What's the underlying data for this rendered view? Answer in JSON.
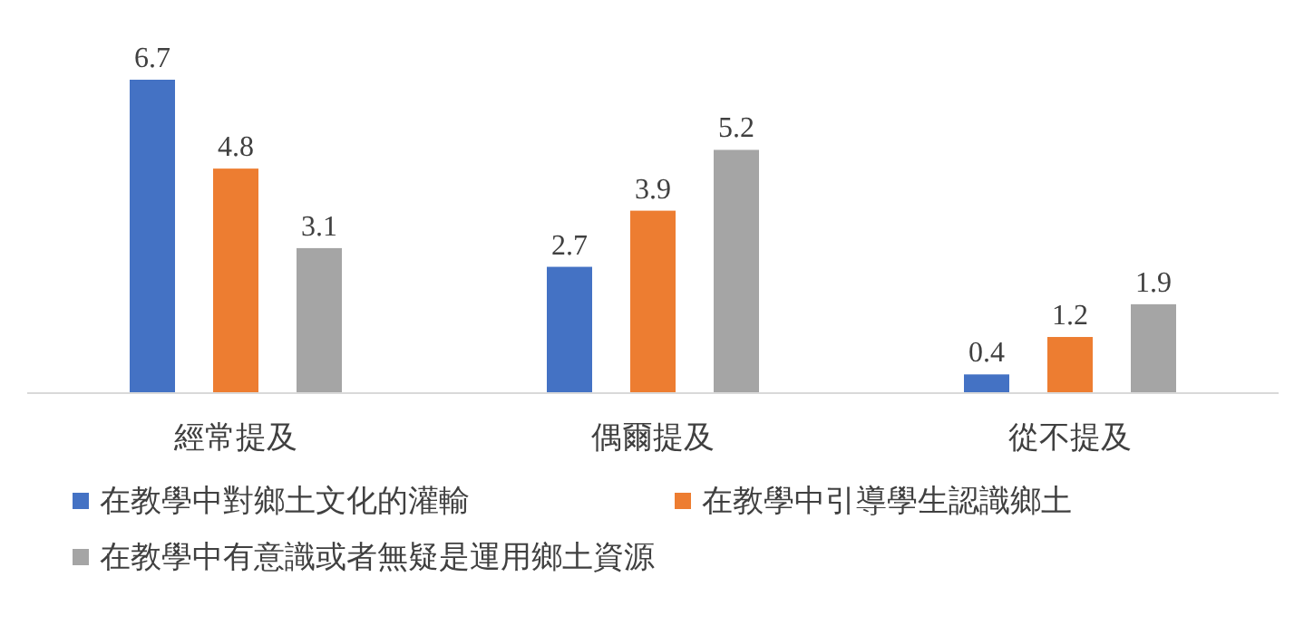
{
  "chart_data": {
    "type": "bar",
    "categories": [
      "經常提及",
      "偶爾提及",
      "從不提及"
    ],
    "series": [
      {
        "name": "在教學中對鄉土文化的灌輸",
        "color": "#4472c4",
        "values": [
          6.7,
          2.7,
          0.4
        ]
      },
      {
        "name": "在教學中引導學生認識鄉土",
        "color": "#ed7d31",
        "values": [
          4.8,
          3.9,
          1.2
        ]
      },
      {
        "name": "在教學中有意識或者無疑是運用鄉土資源",
        "color": "#a5a5a5",
        "values": [
          3.1,
          5.2,
          1.9
        ]
      }
    ],
    "data_labels": true,
    "legend": "bottom"
  }
}
